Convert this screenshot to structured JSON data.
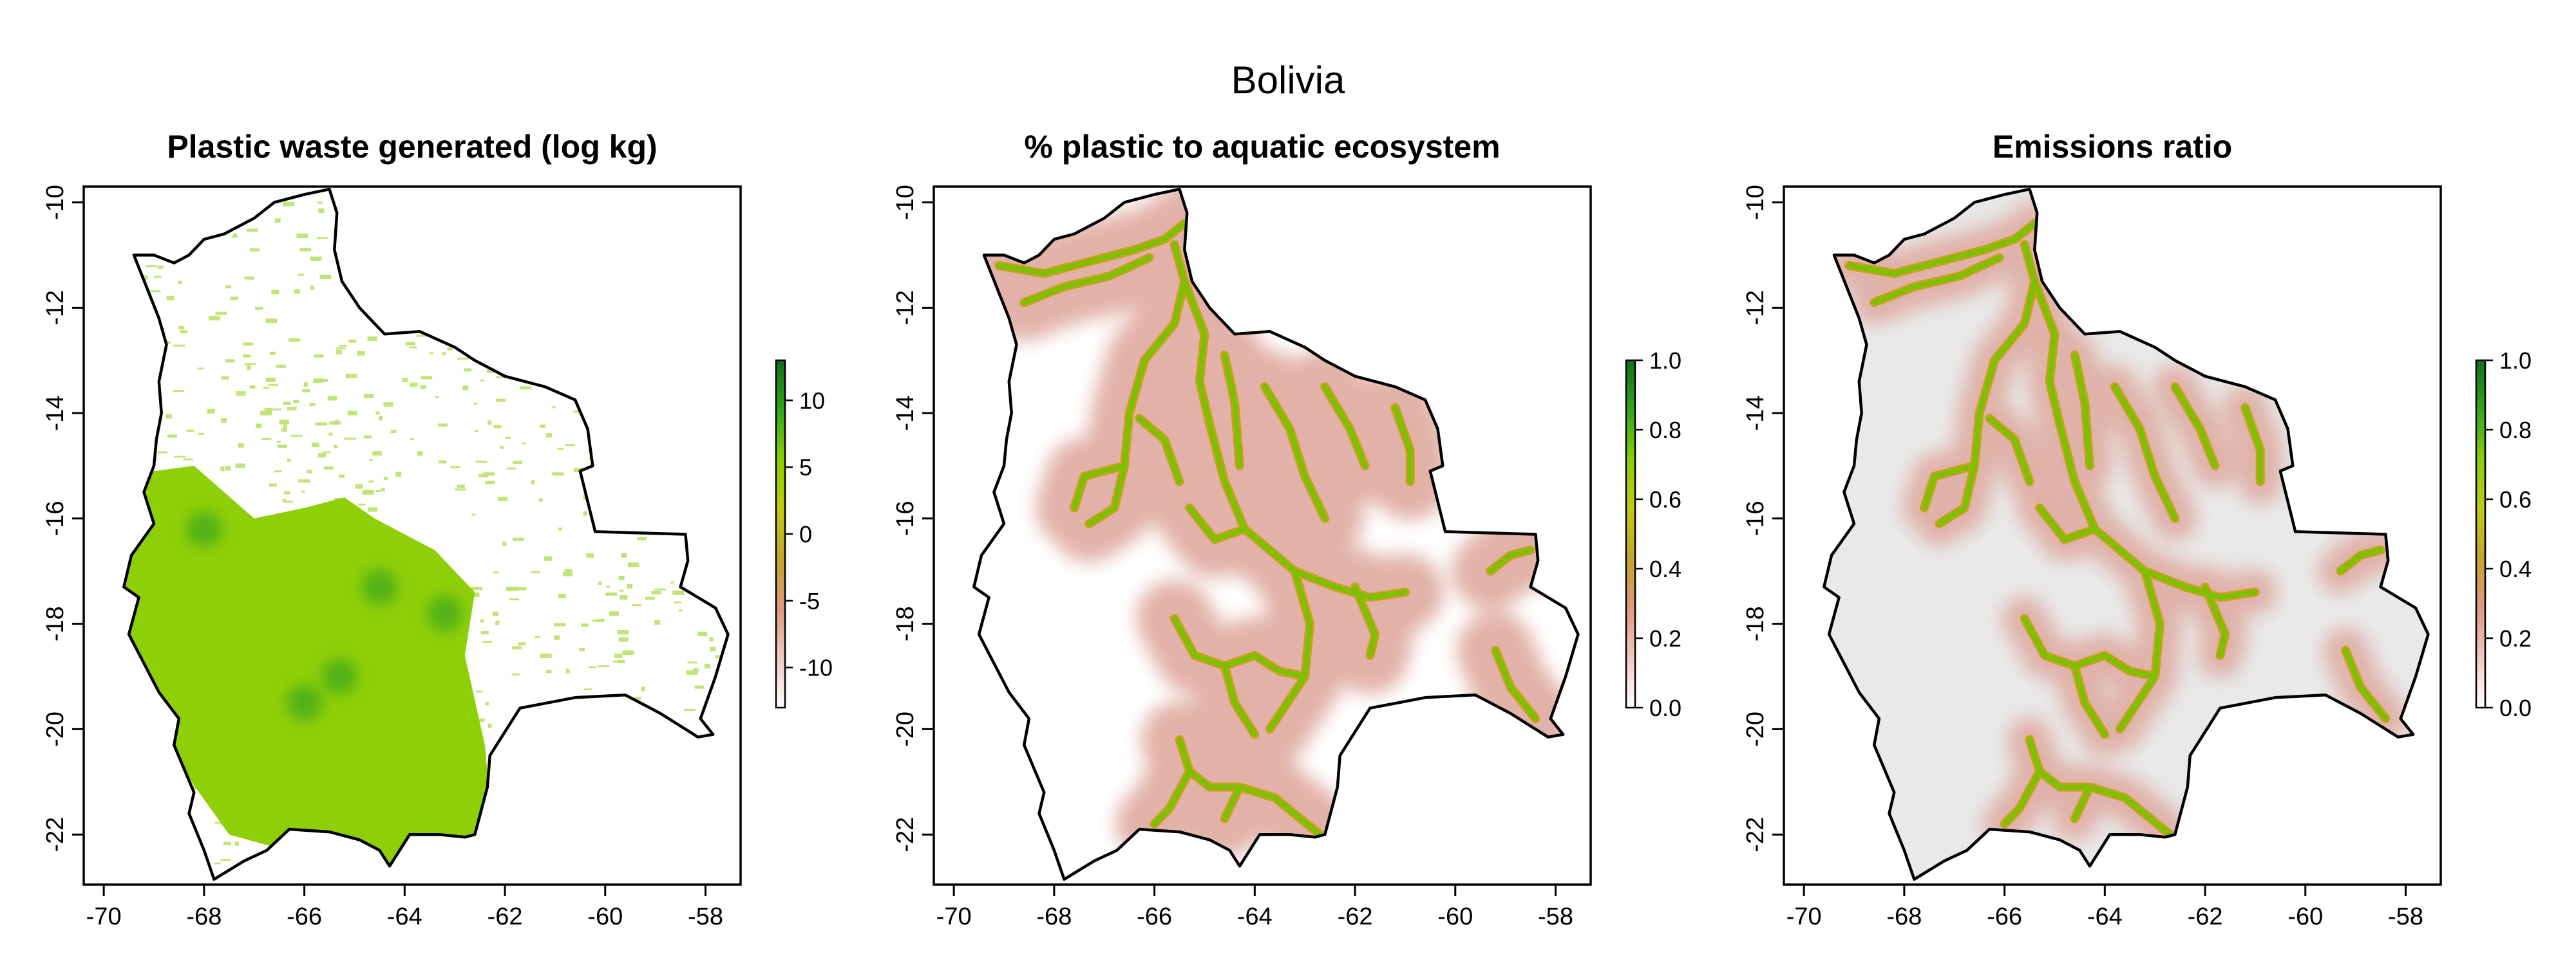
{
  "figure": {
    "title": "Bolivia"
  },
  "map": {
    "lon_range": [
      -70.4,
      -57.3
    ],
    "lat_range": [
      -22.95,
      -9.7
    ],
    "x_ticks": [
      -70,
      -68,
      -66,
      -64,
      -62,
      -60,
      -58
    ],
    "y_ticks": [
      -10,
      -12,
      -14,
      -16,
      -18,
      -20,
      -22
    ],
    "outline": [
      [
        -69.4,
        -11.0
      ],
      [
        -69.0,
        -11.0
      ],
      [
        -68.6,
        -11.15
      ],
      [
        -68.3,
        -11.0
      ],
      [
        -68.0,
        -10.7
      ],
      [
        -67.6,
        -10.6
      ],
      [
        -67.0,
        -10.3
      ],
      [
        -66.6,
        -10.0
      ],
      [
        -66.0,
        -9.85
      ],
      [
        -65.5,
        -9.75
      ],
      [
        -65.35,
        -10.2
      ],
      [
        -65.4,
        -10.9
      ],
      [
        -65.25,
        -11.5
      ],
      [
        -64.9,
        -12.0
      ],
      [
        -64.4,
        -12.5
      ],
      [
        -63.7,
        -12.45
      ],
      [
        -63.0,
        -12.75
      ],
      [
        -62.6,
        -13.0
      ],
      [
        -62.0,
        -13.3
      ],
      [
        -61.2,
        -13.5
      ],
      [
        -60.6,
        -13.75
      ],
      [
        -60.35,
        -14.3
      ],
      [
        -60.25,
        -15.0
      ],
      [
        -60.5,
        -15.1
      ],
      [
        -60.2,
        -16.25
      ],
      [
        -58.4,
        -16.3
      ],
      [
        -58.35,
        -16.8
      ],
      [
        -58.5,
        -17.3
      ],
      [
        -57.8,
        -17.7
      ],
      [
        -57.55,
        -18.2
      ],
      [
        -57.8,
        -19.0
      ],
      [
        -58.1,
        -19.8
      ],
      [
        -57.85,
        -20.1
      ],
      [
        -58.15,
        -20.15
      ],
      [
        -58.9,
        -19.7
      ],
      [
        -59.6,
        -19.35
      ],
      [
        -60.6,
        -19.4
      ],
      [
        -61.7,
        -19.6
      ],
      [
        -62.3,
        -20.5
      ],
      [
        -62.35,
        -21.1
      ],
      [
        -62.6,
        -22.0
      ],
      [
        -62.8,
        -22.05
      ],
      [
        -63.3,
        -22.0
      ],
      [
        -63.9,
        -22.0
      ],
      [
        -64.3,
        -22.6
      ],
      [
        -64.5,
        -22.3
      ],
      [
        -64.9,
        -22.1
      ],
      [
        -65.5,
        -21.95
      ],
      [
        -66.3,
        -21.9
      ],
      [
        -66.75,
        -22.3
      ],
      [
        -67.2,
        -22.5
      ],
      [
        -67.8,
        -22.85
      ],
      [
        -68.0,
        -22.3
      ],
      [
        -68.3,
        -21.6
      ],
      [
        -68.2,
        -21.2
      ],
      [
        -68.6,
        -20.3
      ],
      [
        -68.5,
        -19.8
      ],
      [
        -68.9,
        -19.3
      ],
      [
        -69.5,
        -18.2
      ],
      [
        -69.3,
        -17.5
      ],
      [
        -69.6,
        -17.3
      ],
      [
        -69.45,
        -16.7
      ],
      [
        -69.0,
        -16.1
      ],
      [
        -69.2,
        -15.5
      ],
      [
        -69.0,
        -15.0
      ],
      [
        -68.95,
        -14.5
      ],
      [
        -68.85,
        -14.0
      ],
      [
        -68.9,
        -13.4
      ],
      [
        -68.75,
        -12.7
      ],
      [
        -68.9,
        -12.2
      ],
      [
        -69.4,
        -11.0
      ]
    ],
    "rivers": [
      [
        [
          -69.1,
          -11.2
        ],
        [
          -68.2,
          -11.35
        ],
        [
          -67.2,
          -11.1
        ],
        [
          -66.4,
          -10.9
        ],
        [
          -65.8,
          -10.7
        ],
        [
          -65.4,
          -10.4
        ]
      ],
      [
        [
          -68.6,
          -11.9
        ],
        [
          -67.8,
          -11.6
        ],
        [
          -66.9,
          -11.4
        ],
        [
          -66.1,
          -11.05
        ]
      ],
      [
        [
          -65.6,
          -10.8
        ],
        [
          -65.4,
          -11.5
        ],
        [
          -65.6,
          -12.3
        ],
        [
          -66.2,
          -13.0
        ],
        [
          -66.5,
          -14.0
        ],
        [
          -66.6,
          -15.0
        ],
        [
          -66.8,
          -15.8
        ],
        [
          -67.3,
          -16.1
        ]
      ],
      [
        [
          -66.6,
          -15.0
        ],
        [
          -67.4,
          -15.2
        ],
        [
          -67.6,
          -15.8
        ]
      ],
      [
        [
          -65.4,
          -11.5
        ],
        [
          -65.0,
          -12.5
        ],
        [
          -65.1,
          -13.4
        ],
        [
          -64.9,
          -14.2
        ],
        [
          -64.6,
          -15.3
        ],
        [
          -64.2,
          -16.2
        ],
        [
          -63.2,
          -17.0
        ],
        [
          -62.4,
          -17.3
        ],
        [
          -61.7,
          -17.5
        ],
        [
          -61.0,
          -17.4
        ]
      ],
      [
        [
          -64.6,
          -12.9
        ],
        [
          -64.4,
          -13.8
        ],
        [
          -64.3,
          -15.0
        ]
      ],
      [
        [
          -63.8,
          -13.5
        ],
        [
          -63.3,
          -14.3
        ],
        [
          -63.0,
          -15.2
        ],
        [
          -62.6,
          -16.0
        ]
      ],
      [
        [
          -62.6,
          -13.5
        ],
        [
          -62.1,
          -14.3
        ],
        [
          -61.8,
          -15.0
        ]
      ],
      [
        [
          -61.2,
          -13.9
        ],
        [
          -60.9,
          -14.7
        ],
        [
          -60.9,
          -15.3
        ]
      ],
      [
        [
          -66.3,
          -14.1
        ],
        [
          -65.8,
          -14.5
        ],
        [
          -65.5,
          -15.3
        ]
      ],
      [
        [
          -65.3,
          -15.8
        ],
        [
          -64.8,
          -16.4
        ],
        [
          -64.2,
          -16.2
        ]
      ],
      [
        [
          -63.2,
          -17.0
        ],
        [
          -62.9,
          -18.0
        ],
        [
          -63.0,
          -19.0
        ],
        [
          -63.7,
          -20.0
        ]
      ],
      [
        [
          -62.0,
          -17.3
        ],
        [
          -61.6,
          -18.2
        ],
        [
          -61.7,
          -18.6
        ]
      ],
      [
        [
          -65.6,
          -17.9
        ],
        [
          -65.2,
          -18.6
        ],
        [
          -64.6,
          -18.8
        ],
        [
          -64.0,
          -18.6
        ],
        [
          -63.5,
          -18.9
        ],
        [
          -63.0,
          -19.0
        ]
      ],
      [
        [
          -64.6,
          -18.8
        ],
        [
          -64.4,
          -19.5
        ],
        [
          -64.0,
          -20.1
        ]
      ],
      [
        [
          -65.5,
          -20.2
        ],
        [
          -65.3,
          -20.8
        ],
        [
          -64.9,
          -21.1
        ],
        [
          -64.3,
          -21.1
        ],
        [
          -63.6,
          -21.3
        ],
        [
          -62.7,
          -22.0
        ]
      ],
      [
        [
          -65.3,
          -20.8
        ],
        [
          -65.7,
          -21.5
        ],
        [
          -66.0,
          -21.8
        ]
      ],
      [
        [
          -64.3,
          -21.1
        ],
        [
          -64.6,
          -21.7
        ]
      ],
      [
        [
          -59.2,
          -18.5
        ],
        [
          -58.9,
          -19.2
        ],
        [
          -58.4,
          -19.8
        ]
      ],
      [
        [
          -59.3,
          -17.0
        ],
        [
          -58.9,
          -16.7
        ],
        [
          -58.5,
          -16.6
        ]
      ]
    ]
  },
  "panels": [
    {
      "title": "Plastic waste generated (log kg)",
      "legend": {
        "ticks": [
          10,
          5,
          0,
          -5,
          -10
        ],
        "range": [
          -13,
          13
        ],
        "colors": [
          "#ffffff",
          "#f2c8c2",
          "#dd9a80",
          "#c6a528",
          "#c2cc10",
          "#8ad000",
          "#30a818",
          "#0f6e1c"
        ]
      },
      "fill": "#8fcf08",
      "background": "#ffffff",
      "hotspots": [
        [
          -64.5,
          -17.3
        ],
        [
          -68.0,
          -16.2
        ],
        [
          -63.2,
          -17.8
        ],
        [
          -65.3,
          -19.0
        ],
        [
          -66.0,
          -19.5
        ]
      ]
    },
    {
      "title": "% plastic to aquatic ecosystem",
      "legend": {
        "ticks": [
          1.0,
          0.8,
          0.6,
          0.4,
          0.2,
          0.0
        ],
        "range": [
          0,
          1
        ],
        "colors": [
          "#ffffff",
          "#f2c8c2",
          "#dd9a80",
          "#c6a528",
          "#c2cc10",
          "#8ad000",
          "#30a818",
          "#0f6e1c"
        ]
      },
      "halo": "#dda59a",
      "river": "#7cc000",
      "background": "#ffffff"
    },
    {
      "title": "Emissions ratio",
      "legend": {
        "ticks": [
          1.0,
          0.8,
          0.6,
          0.4,
          0.2,
          0.0
        ],
        "range": [
          0,
          1
        ],
        "colors": [
          "#ffffff",
          "#f2c8c2",
          "#dd9a80",
          "#c6a528",
          "#c2cc10",
          "#8ad000",
          "#30a818",
          "#0f6e1c"
        ]
      },
      "halo": "#dda59a",
      "river": "#7cc000",
      "background": "#e9e9e9"
    }
  ]
}
